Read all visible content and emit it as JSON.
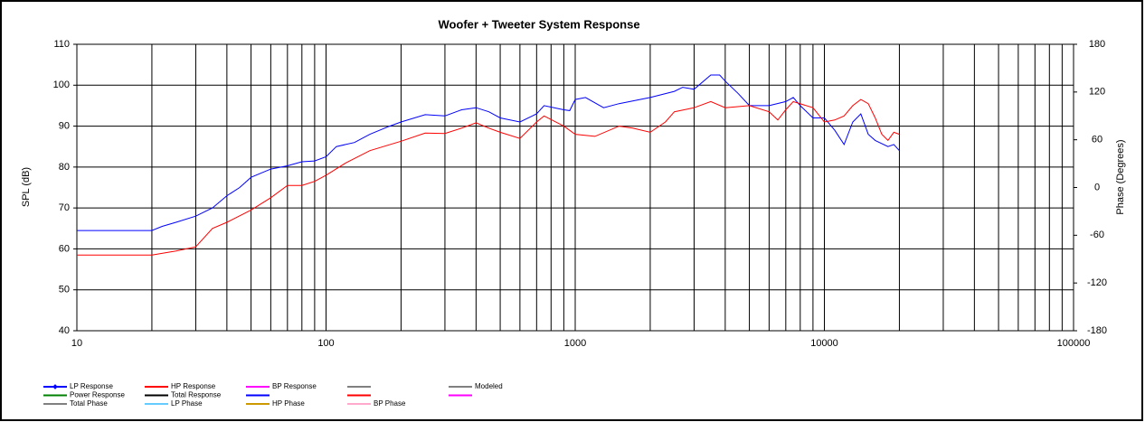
{
  "chart_data": {
    "type": "line",
    "title": "Woofer + Tweeter    System Response",
    "y_label": "SPL (dB)",
    "y2_label": "Phase (Degrees)",
    "xscale": "log",
    "grid": true,
    "xlim": [
      10,
      100000
    ],
    "xticks": [
      10,
      100,
      1000,
      10000,
      100000
    ],
    "xgrid": [
      20,
      30,
      40,
      50,
      60,
      70,
      80,
      90,
      200,
      300,
      400,
      500,
      600,
      700,
      800,
      900,
      2000,
      3000,
      4000,
      5000,
      6000,
      7000,
      8000,
      9000,
      20000,
      30000,
      40000,
      50000,
      60000,
      70000,
      80000,
      90000
    ],
    "ylim": [
      40,
      110
    ],
    "yticks": [
      40,
      50,
      60,
      70,
      80,
      90,
      100,
      110
    ],
    "y2lim": [
      -180,
      180
    ],
    "y2ticks": [
      -180,
      -120,
      -60,
      0,
      60,
      120,
      180
    ],
    "series": [
      {
        "name": "LP Response",
        "color": "#0000ff",
        "marker": true,
        "x": [
          10,
          20,
          22,
          25,
          30,
          35,
          40,
          45,
          50,
          60,
          70,
          80,
          90,
          100,
          110,
          130,
          150,
          180,
          200,
          250,
          300,
          350,
          400,
          450,
          500,
          600,
          700,
          750,
          900,
          950,
          1000,
          1100,
          1300,
          1500,
          2000,
          2500,
          2700,
          3000,
          3500,
          3800,
          4000,
          4500,
          5000,
          6000,
          7000,
          7500,
          8000,
          9000,
          10000,
          11000,
          12000,
          13000,
          14000,
          15000,
          16000,
          18000,
          19000,
          20000
        ],
        "values": [
          64.5,
          64.5,
          65.5,
          66.5,
          68,
          70,
          73,
          75,
          77.5,
          79.5,
          80.3,
          81.3,
          81.5,
          82.5,
          85,
          86,
          88,
          90,
          91,
          92.8,
          92.5,
          94,
          94.5,
          93.5,
          92,
          91,
          93,
          95,
          94,
          93.8,
          96.5,
          97,
          94.5,
          95.5,
          97,
          98.5,
          99.5,
          99,
          102.5,
          102.5,
          101,
          98,
          95,
          95,
          96,
          97,
          95,
          92,
          92,
          89,
          85.5,
          91,
          93,
          88,
          86.5,
          85,
          85.5,
          84
        ]
      },
      {
        "name": "HP Response",
        "color": "#ff0000",
        "x": [
          10,
          20,
          25,
          30,
          35,
          40,
          50,
          60,
          70,
          80,
          90,
          100,
          120,
          150,
          200,
          250,
          300,
          350,
          400,
          450,
          500,
          600,
          700,
          750,
          900,
          1000,
          1200,
          1500,
          1700,
          2000,
          2300,
          2500,
          3000,
          3500,
          4000,
          5000,
          6000,
          6500,
          7000,
          7500,
          9000,
          10000,
          11000,
          12000,
          13000,
          14000,
          15000,
          16000,
          17000,
          18000,
          19000,
          20000
        ],
        "values": [
          58.5,
          58.5,
          59.5,
          60.5,
          65,
          66.5,
          69.5,
          72.5,
          75.5,
          75.5,
          76.5,
          78,
          81,
          84,
          86.3,
          88.3,
          88.2,
          89.5,
          90.8,
          89.5,
          88.5,
          87,
          91,
          92.5,
          90,
          88,
          87.5,
          90,
          89.5,
          88.5,
          91,
          93.5,
          94.5,
          96,
          94.5,
          95,
          93.5,
          91.5,
          94,
          96,
          94.5,
          91,
          91.5,
          92.5,
          95,
          96.5,
          95.5,
          92,
          88,
          86.5,
          88.5,
          88
        ]
      },
      {
        "name": "BP Response",
        "color": "#ff00ff",
        "values": []
      },
      {
        "name": null,
        "color": "#808080",
        "values": []
      },
      {
        "name": "Modeled",
        "color": "#808080",
        "values": []
      },
      {
        "name": "Power Response",
        "color": "#008000",
        "values": []
      },
      {
        "name": "Total Response",
        "color": "#000000",
        "values": []
      },
      {
        "name": null,
        "color": "#0000ff",
        "values": []
      },
      {
        "name": null,
        "color": "#ff0000",
        "values": []
      },
      {
        "name": null,
        "color": "#ff00ff",
        "values": []
      },
      {
        "name": "Total Phase",
        "color": "#808080",
        "values": []
      },
      {
        "name": "LP Phase",
        "color": "#66ccff",
        "values": []
      },
      {
        "name": "HP Phase",
        "color": "#cc9900",
        "values": []
      },
      {
        "name": "BP Phase",
        "color": "#ffaacc",
        "values": []
      }
    ]
  }
}
